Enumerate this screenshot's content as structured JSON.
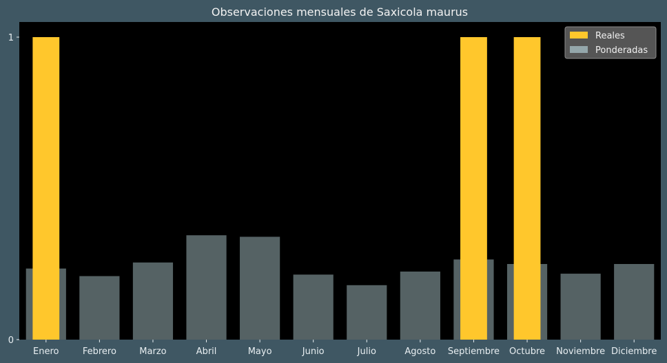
{
  "chart_data": {
    "type": "bar",
    "title": "Observaciones mensuales de Saxicola maurus",
    "xlabel": "",
    "ylabel": "",
    "categories": [
      "Enero",
      "Febrero",
      "Marzo",
      "Abril",
      "Mayo",
      "Junio",
      "Julio",
      "Agosto",
      "Septiembre",
      "Octubre",
      "Noviembre",
      "Diciembre"
    ],
    "series": [
      {
        "name": "Reales",
        "color": "#ffc72c",
        "values": [
          1,
          0,
          0,
          0,
          0,
          0,
          0,
          0,
          1,
          1,
          0,
          0
        ]
      },
      {
        "name": "Ponderadas",
        "color": "#a9c3c8",
        "values": [
          0.235,
          0.21,
          0.255,
          0.345,
          0.34,
          0.215,
          0.18,
          0.225,
          0.265,
          0.25,
          0.218,
          0.25
        ]
      }
    ],
    "yticks": [
      0,
      1
    ],
    "ylim": [
      0,
      1.05
    ],
    "grid": false,
    "legend_position": "top-right",
    "plot_background": "#000000",
    "page_background": "#3f5763"
  }
}
